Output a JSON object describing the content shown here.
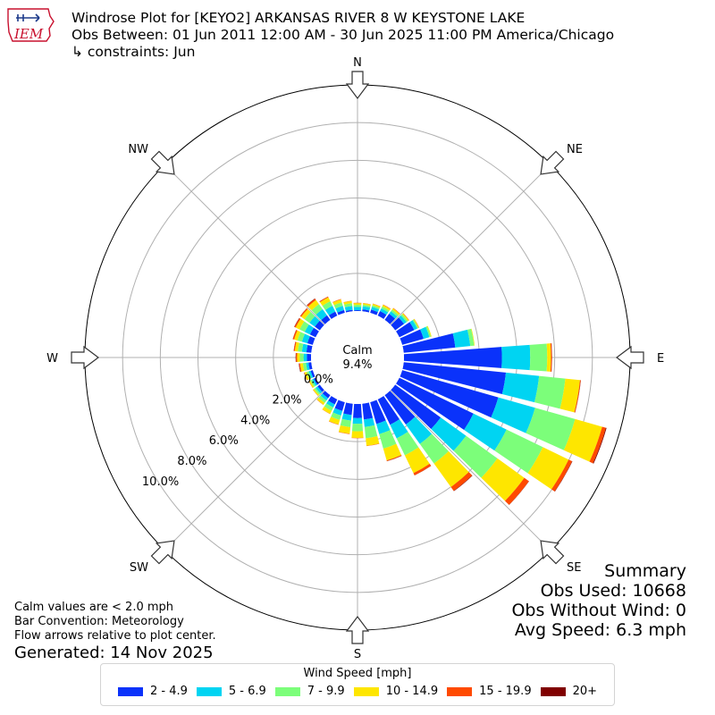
{
  "logo": {
    "text": "IEM",
    "icon": "iowa-state-outline-logo"
  },
  "title": {
    "line1": "Windrose Plot for [KEYO2] ARKANSAS RIVER 8 W KEYSTONE LAKE",
    "line2": "Obs Between: 01 Jun 2011 12:00 AM - 30 Jun 2025 11:00 PM America/Chicago",
    "line3": "↳ constraints: Jun"
  },
  "summary": {
    "heading": "Summary",
    "obs_used": "Obs Used: 10668",
    "obs_without_wind": "Obs Without Wind: 0",
    "avg_speed": "Avg Speed: 6.3 mph"
  },
  "notes": {
    "calm_note": "Calm values are < 2.0 mph",
    "bar_convention": "Bar Convention: Meteorology",
    "flow_arrows": "Flow arrows relative to plot center.",
    "generated": "Generated: 14 Nov 2025"
  },
  "legend": {
    "title": "Wind Speed [mph]",
    "items": [
      {
        "label": "2 - 4.9",
        "color": "#0a32fa"
      },
      {
        "label": "5 - 6.9",
        "color": "#00d4f2"
      },
      {
        "label": "7 - 9.9",
        "color": "#7cfe7a"
      },
      {
        "label": "10 - 14.9",
        "color": "#fee600"
      },
      {
        "label": "15 - 19.9",
        "color": "#ff4a00"
      },
      {
        "label": "20+",
        "color": "#800000"
      }
    ]
  },
  "chart_data": {
    "type": "windrose",
    "calm_label": "Calm",
    "calm_percent": "9.4%",
    "calm_percent_value": 9.4,
    "radial_tick_values": [
      0,
      2,
      4,
      6,
      8,
      10
    ],
    "radial_tick_labels": [
      "0.0%",
      "2.0%",
      "4.0%",
      "6.0%",
      "8.0%",
      "10.0%"
    ],
    "radial_max": 12,
    "compass_labels": [
      "N",
      "NE",
      "E",
      "SE",
      "S",
      "SW",
      "W",
      "NW"
    ],
    "speed_bins": [
      "2 - 4.9",
      "5 - 6.9",
      "7 - 9.9",
      "10 - 14.9",
      "15 - 19.9",
      "20+"
    ],
    "bin_colors": [
      "#0a32fa",
      "#00d4f2",
      "#7cfe7a",
      "#fee600",
      "#ff4a00",
      "#800000"
    ],
    "direction_step_deg": 10,
    "directions_deg": [
      0,
      10,
      20,
      30,
      40,
      50,
      60,
      70,
      80,
      90,
      100,
      110,
      120,
      130,
      140,
      150,
      160,
      170,
      180,
      190,
      200,
      210,
      220,
      230,
      240,
      250,
      260,
      270,
      280,
      290,
      300,
      310,
      320,
      330,
      340,
      350
    ],
    "cumulative_percent": [
      [
        0.05,
        0.22,
        0.33,
        0.42,
        0.44,
        0.44
      ],
      [
        0.1,
        0.27,
        0.36,
        0.43,
        0.44,
        0.44
      ],
      [
        0.18,
        0.33,
        0.42,
        0.5,
        0.51,
        0.51
      ],
      [
        0.27,
        0.43,
        0.54,
        0.64,
        0.66,
        0.66
      ],
      [
        0.4,
        0.56,
        0.67,
        0.76,
        0.78,
        0.78
      ],
      [
        0.58,
        0.74,
        0.84,
        0.9,
        0.92,
        0.92
      ],
      [
        0.88,
        1.06,
        1.13,
        1.17,
        1.18,
        1.18
      ],
      [
        1.18,
        1.5,
        1.58,
        1.62,
        1.62,
        1.62
      ],
      [
        2.75,
        3.55,
        3.75,
        3.78,
        3.78,
        3.78
      ],
      [
        5.2,
        6.7,
        7.6,
        7.8,
        7.85,
        7.86
      ],
      [
        5.45,
        7.22,
        8.62,
        9.4,
        9.44,
        9.45
      ],
      [
        5.3,
        7.33,
        9.54,
        11.03,
        11.23,
        11.27
      ],
      [
        4.37,
        6.32,
        8.46,
        9.98,
        10.18,
        10.2
      ],
      [
        2.98,
        4.64,
        6.69,
        8.45,
        8.75,
        8.76
      ],
      [
        1.92,
        3.19,
        4.47,
        6.01,
        6.26,
        6.28
      ],
      [
        1.5,
        2.3,
        3.3,
        4.35,
        4.48,
        4.49
      ],
      [
        1.2,
        1.76,
        2.56,
        3.21,
        3.25,
        3.26
      ],
      [
        0.84,
        1.24,
        1.84,
        2.24,
        2.26,
        2.26
      ],
      [
        0.75,
        1.05,
        1.45,
        1.8,
        1.82,
        1.82
      ],
      [
        0.6,
        0.9,
        1.25,
        1.6,
        1.62,
        1.62
      ],
      [
        0.48,
        0.73,
        0.98,
        1.23,
        1.25,
        1.25
      ],
      [
        0.3,
        0.48,
        0.68,
        0.86,
        0.87,
        0.87
      ],
      [
        0.2,
        0.35,
        0.5,
        0.63,
        0.64,
        0.64
      ],
      [
        0.15,
        0.28,
        0.38,
        0.45,
        0.46,
        0.46
      ],
      [
        0.12,
        0.22,
        0.32,
        0.4,
        0.41,
        0.41
      ],
      [
        0.12,
        0.22,
        0.34,
        0.46,
        0.48,
        0.49
      ],
      [
        0.15,
        0.28,
        0.45,
        0.6,
        0.65,
        0.67
      ],
      [
        0.22,
        0.4,
        0.6,
        0.74,
        0.8,
        0.82
      ],
      [
        0.26,
        0.5,
        0.72,
        0.88,
        0.93,
        0.94
      ],
      [
        0.3,
        0.6,
        0.85,
        1.03,
        1.1,
        1.11
      ],
      [
        0.34,
        0.65,
        0.95,
        1.18,
        1.25,
        1.27
      ],
      [
        0.33,
        0.68,
        1.0,
        1.22,
        1.28,
        1.29
      ],
      [
        0.3,
        0.7,
        1.03,
        1.3,
        1.38,
        1.4
      ],
      [
        0.24,
        0.58,
        0.85,
        1.08,
        1.12,
        1.13
      ],
      [
        0.15,
        0.38,
        0.58,
        0.74,
        0.76,
        0.76
      ],
      [
        0.08,
        0.28,
        0.43,
        0.55,
        0.56,
        0.56
      ]
    ],
    "legend_placement": "bottom-center",
    "grid": true
  }
}
